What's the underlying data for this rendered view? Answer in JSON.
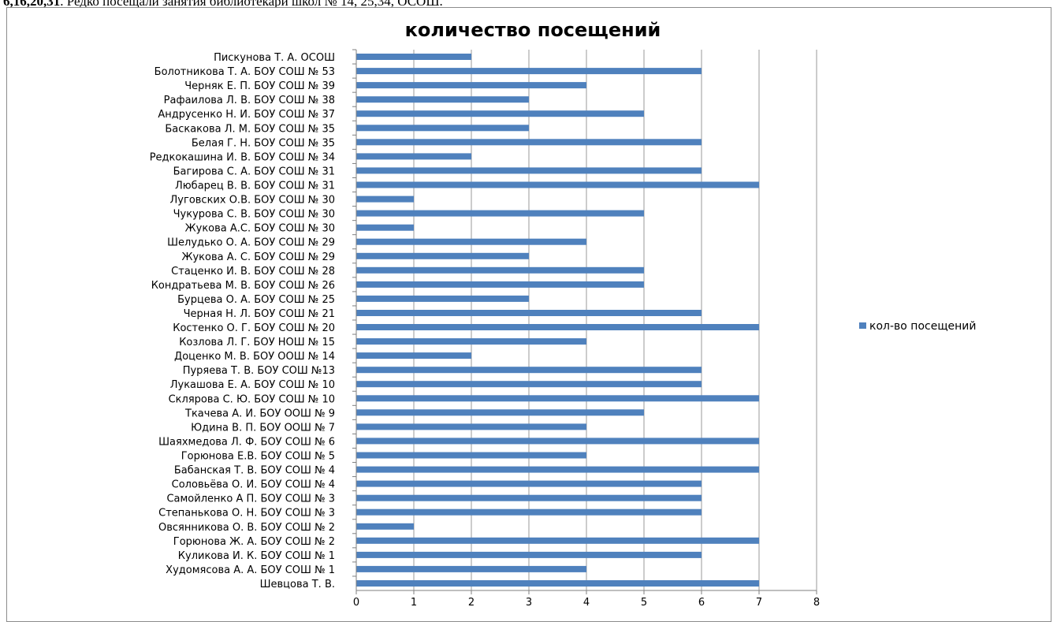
{
  "document": {
    "lead_bold": "6,16,20,31",
    "lead_text": ". Редко посещали занятия библиотекари школ № 14, 25,34, ОСОШ."
  },
  "chart_data": {
    "type": "bar",
    "orientation": "horizontal",
    "title": "количество посещений",
    "xlabel": "",
    "ylabel": "",
    "xlim": [
      0,
      8
    ],
    "x_ticks": [
      "0",
      "1",
      "2",
      "3",
      "4",
      "5",
      "6",
      "7",
      "8"
    ],
    "grid": true,
    "legend_position": "right",
    "categories": [
      "Пискунова Т. А. ОСОШ",
      "Болотникова Т. А. БОУ СОШ № 53",
      "Черняк Е. П. БОУ СОШ № 39",
      "Рафаилова Л. В. БОУ СОШ № 38",
      "Андрусенко Н. И. БОУ СОШ № 37",
      "Баскакова Л. М. БОУ СОШ № 35",
      "Белая Г. Н. БОУ СОШ № 35",
      "Редкокашина И. В. БОУ СОШ № 34",
      "Багирова С. А. БОУ СОШ № 31",
      "Любарец В. В. БОУ СОШ № 31",
      "Луговских О.В. БОУ СОШ № 30",
      "Чукурова С. В. БОУ СОШ № 30",
      "Жукова А.С. БОУ СОШ № 30",
      "Шелудько О. А. БОУ СОШ № 29",
      "Жукова А. С. БОУ СОШ № 29",
      "Стаценко И. В. БОУ СОШ № 28",
      "Кондратьева М. В. БОУ СОШ № 26",
      "Бурцева О. А. БОУ СОШ № 25",
      "Черная Н. Л. БОУ СОШ № 21",
      "Костенко О. Г. БОУ СОШ № 20",
      "Козлова Л. Г. БОУ НОШ № 15",
      "Доценко М. В. БОУ ООШ № 14",
      "Пуряева Т. В. БОУ СОШ №13",
      "Лукашова  Е. А. БОУ СОШ № 10",
      "Склярова С. Ю. БОУ СОШ № 10",
      "Ткачева А. И. БОУ ООШ № 9",
      "Юдина В. П. БОУ ООШ № 7",
      "Шаяхмедова Л. Ф. БОУ СОШ № 6",
      "Горюнова Е.В. БОУ СОШ № 5",
      "Бабанская Т. В. БОУ СОШ № 4",
      "Соловьёва О. И. БОУ СОШ № 4",
      "Самойленко А П. БОУ СОШ № 3",
      "Степанькова О. Н. БОУ СОШ № 3",
      "Овсянникова О. В. БОУ СОШ № 2",
      "Горюнова Ж. А. БОУ СОШ № 2",
      "Куликова И. К. БОУ СОШ № 1",
      "Худомясова А. А. БОУ СОШ № 1",
      "Шевцова Т. В."
    ],
    "series": [
      {
        "name": "кол-во посещений",
        "color": "#4f81bd",
        "values": [
          2,
          6,
          4,
          3,
          5,
          3,
          6,
          2,
          6,
          7,
          1,
          5,
          1,
          4,
          3,
          5,
          5,
          3,
          6,
          7,
          4,
          2,
          6,
          6,
          7,
          5,
          4,
          7,
          4,
          7,
          6,
          6,
          6,
          1,
          7,
          6,
          4,
          7
        ]
      }
    ]
  }
}
